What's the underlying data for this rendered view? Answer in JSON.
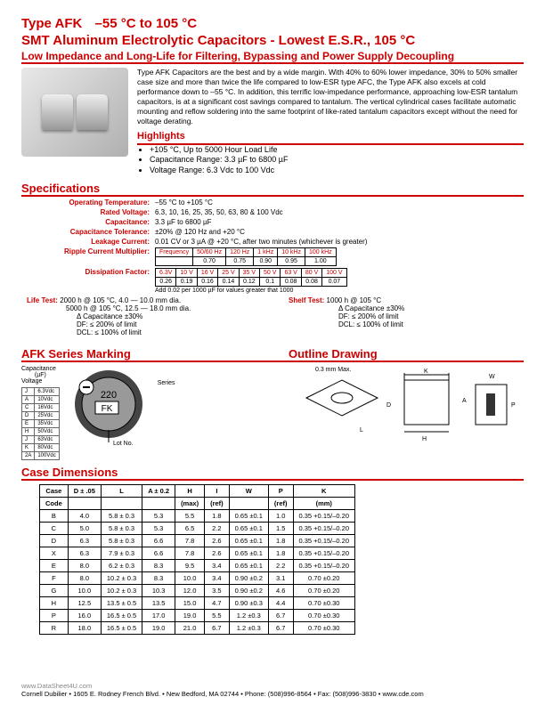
{
  "header": {
    "type_line_prefix": "Type AFK",
    "temp_range": "–55 °C to 105 °C",
    "line2": "SMT Aluminum Electrolytic Capacitors - Lowest E.S.R., 105 °C",
    "line3": "Low Impedance and Long-Life for Filtering, Bypassing and Power Supply Decoupling"
  },
  "description": "Type AFK Capacitors are the best and by a wide margin. With 40% to 60% lower impedance, 30% to 50% smaller case size and more than twice the life compared to low-ESR type AFC, the Type AFK also excels at cold performance down to –55 °C. In addition, this terrific low-impedance performance, approaching low-ESR tantalum capacitors, is at a significant cost savings compared to tantalum. The vertical cylindrical cases facilitate automatic mounting and reflow soldering into the same footprint of like-rated tantalum capacitors except without the need for voltage derating.",
  "highlights": {
    "title": "Highlights",
    "items": [
      "+105 °C, Up to 5000 Hour Load Life",
      "Capacitance Range: 3.3 µF to 6800 µF",
      "Voltage Range: 6.3 Vdc to 100 Vdc"
    ]
  },
  "spec_title": "Specifications",
  "specs": {
    "op_temp_label": "Operating Temperature:",
    "op_temp": "–55 °C to +105 °C",
    "rated_v_label": "Rated Voltage:",
    "rated_v": "6.3, 10, 16, 25, 35, 50, 63, 80 & 100 Vdc",
    "cap_label": "Capacitance:",
    "cap": "3.3 µF to 6800 µF",
    "cap_tol_label": "Capacitance Tolerance:",
    "cap_tol": "±20% @ 120 Hz and +20 °C",
    "leak_label": "Leakage Current:",
    "leak": "0.01 CV or 3 µA @ +20 °C, after two minutes (whichever is greater)",
    "ripple_label": "Ripple Current Multiplier:",
    "diss_label": "Dissipation Factor:"
  },
  "freq_table": {
    "header": [
      "Frequency",
      "50/60 Hz",
      "120 Hz",
      "1 kHz",
      "10 kHz",
      "100 kHz"
    ],
    "row": [
      "",
      "0.70",
      "0.75",
      "0.90",
      "0.95",
      "1.00"
    ]
  },
  "diss_table": {
    "header": [
      "6.3V",
      "10 V",
      "16 V",
      "25 V",
      "35 V",
      "50 V",
      "63 V",
      "80 V",
      "100 V"
    ],
    "row": [
      "0.26",
      "0.19",
      "0.16",
      "0.14",
      "0.12",
      "0.1",
      "0.08",
      "0.08",
      "0.07"
    ]
  },
  "diss_note": "Add 0.02 per 1000 µF for   values greater that 1000",
  "life": {
    "label": "Life Test:",
    "l1": "2000 h @ 105 °C, 4.0 — 10.0 mm dia.",
    "l2": "5000 h @ 105 °C, 12.5 — 18.0 mm dia.",
    "l3": "Δ Capacitance ±30%",
    "l4": "DF:  ≤ 200% of limit",
    "l5": "DCL:  ≤ 100% of limit",
    "shelf_label": "Shelf Test:",
    "s1": "1000 h @ 105 °C",
    "s2": "Δ Capacitance ±30%",
    "s3": "DF:  ≤ 200% of limit",
    "s4": "DCL:  ≤ 100% of limit"
  },
  "marking_title": "AFK Series Marking",
  "outline_title": "Outline Drawing",
  "marking": {
    "cap_label": "Capacitance",
    "cap_unit": "(µF)",
    "voltage_label": "Voltage",
    "series_label": "Series",
    "lot_label": "Lot No.",
    "value": "220",
    "code": "FK"
  },
  "volt_codes": [
    [
      "J",
      "6.3Vdc"
    ],
    [
      "A",
      "10Vdc"
    ],
    [
      "C",
      "16Vdc"
    ],
    [
      "D",
      "25Vdc"
    ],
    [
      "E",
      "35Vdc"
    ],
    [
      "H",
      "50Vdc"
    ],
    [
      "J",
      "63Vdc"
    ],
    [
      "K",
      "80Vdc"
    ],
    [
      "2A",
      "100Vdc"
    ]
  ],
  "dim_title": "Case Dimensions",
  "dim_header": [
    "Case",
    "D ± .05",
    "L",
    "A ± 0.2",
    "H",
    "I",
    "W",
    "P",
    "K"
  ],
  "dim_header2": [
    "Code",
    "",
    "",
    "",
    "(max)",
    "(ref)",
    "",
    "(ref)",
    "(mm)"
  ],
  "dim_rows": [
    [
      "B",
      "4.0",
      "5.8 ± 0.3",
      "5.3",
      "5.5",
      "1.8",
      "0.65 ±0.1",
      "1.0",
      "0.35 +0.15/–0.20"
    ],
    [
      "C",
      "5.0",
      "5.8 ± 0.3",
      "5.3",
      "6.5",
      "2.2",
      "0.65 ±0.1",
      "1.5",
      "0.35 +0.15/–0.20"
    ],
    [
      "D",
      "6.3",
      "5.8 ± 0.3",
      "6.6",
      "7.8",
      "2.6",
      "0.65 ±0.1",
      "1.8",
      "0.35 +0.15/–0.20"
    ],
    [
      "X",
      "6.3",
      "7.9 ± 0.3",
      "6.6",
      "7.8",
      "2.6",
      "0.65 ±0.1",
      "1.8",
      "0.35 +0.15/–0.20"
    ],
    [
      "E",
      "8.0",
      "6.2 ± 0.3",
      "8.3",
      "9.5",
      "3.4",
      "0.65 ±0.1",
      "2.2",
      "0.35 +0.15/–0.20"
    ],
    [
      "F",
      "8.0",
      "10.2 ± 0.3",
      "8.3",
      "10.0",
      "3.4",
      "0.90 ±0.2",
      "3.1",
      "0.70 ±0.20"
    ],
    [
      "G",
      "10.0",
      "10.2 ± 0.3",
      "10.3",
      "12.0",
      "3.5",
      "0.90 ±0.2",
      "4.6",
      "0.70 ±0.20"
    ],
    [
      "H",
      "12.5",
      "13.5 ± 0.5",
      "13.5",
      "15.0",
      "4.7",
      "0.90 ±0.3",
      "4.4",
      "0.70 ±0.30"
    ],
    [
      "P",
      "16.0",
      "16.5 ± 0.5",
      "17.0",
      "19.0",
      "5.5",
      "1.2 ±0.3",
      "6.7",
      "0.70 ±0.30"
    ],
    [
      "R",
      "18.0",
      "16.5 ± 0.5",
      "19.0",
      "21.0",
      "6.7",
      "1.2 ±0.3",
      "6.7",
      "0.70 ±0.30"
    ]
  ],
  "outline_label": "0.3 mm Max.",
  "footer": {
    "ds": "www.DataSheet4U.com",
    "company": "Cornell Dubilier • 1605 E. Rodney French Blvd. • New Bedford, MA 02744 • Phone: (508)996-8564 • Fax: (508)996-3830 • www.cde.com"
  }
}
